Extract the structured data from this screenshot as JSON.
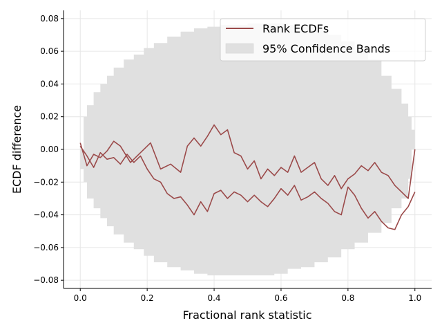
{
  "chart_data": {
    "type": "line",
    "xlabel": "Fractional rank statistic",
    "ylabel": "ECDF difference",
    "xlim": [
      -0.05,
      1.05
    ],
    "ylim": [
      -0.085,
      0.085
    ],
    "x_ticks": [
      0.0,
      0.2,
      0.4,
      0.6,
      0.8,
      1.0
    ],
    "x_tick_labels": [
      "0.0",
      "0.2",
      "0.4",
      "0.6",
      "0.8",
      "1.0"
    ],
    "y_ticks": [
      -0.08,
      -0.06,
      -0.04,
      -0.02,
      0.0,
      0.02,
      0.04,
      0.06,
      0.08
    ],
    "y_tick_labels": [
      "−0.08",
      "−0.06",
      "−0.04",
      "−0.02",
      "0.00",
      "0.02",
      "0.04",
      "0.06",
      "0.08"
    ],
    "grid": true,
    "legend_position": "top-right",
    "legend": [
      {
        "label": "Rank ECDFs",
        "kind": "line",
        "color": "#9b4a4a"
      },
      {
        "label": "95% Confidence Bands",
        "kind": "patch",
        "color": "#e0e0e0"
      }
    ],
    "confidence_band": {
      "x": [
        0.0,
        0.01,
        0.02,
        0.04,
        0.06,
        0.08,
        0.1,
        0.13,
        0.16,
        0.19,
        0.22,
        0.26,
        0.3,
        0.34,
        0.38,
        0.42,
        0.46,
        0.5,
        0.54,
        0.58,
        0.62,
        0.66,
        0.7,
        0.74,
        0.78,
        0.82,
        0.86,
        0.9,
        0.93,
        0.96,
        0.98,
        0.99,
        1.0
      ],
      "upper": [
        0.0,
        0.02,
        0.027,
        0.035,
        0.04,
        0.045,
        0.05,
        0.055,
        0.058,
        0.062,
        0.065,
        0.069,
        0.072,
        0.074,
        0.075,
        0.076,
        0.076,
        0.077,
        0.077,
        0.077,
        0.076,
        0.075,
        0.073,
        0.07,
        0.066,
        0.061,
        0.055,
        0.045,
        0.037,
        0.028,
        0.02,
        0.012,
        0.0
      ],
      "lower": [
        0.0,
        -0.012,
        -0.02,
        -0.03,
        -0.036,
        -0.042,
        -0.047,
        -0.052,
        -0.057,
        -0.061,
        -0.065,
        -0.069,
        -0.072,
        -0.074,
        -0.076,
        -0.077,
        -0.077,
        -0.077,
        -0.077,
        -0.077,
        -0.076,
        -0.073,
        -0.072,
        -0.069,
        -0.066,
        -0.061,
        -0.057,
        -0.051,
        -0.045,
        -0.036,
        -0.03,
        -0.018,
        0.0
      ]
    },
    "series": [
      {
        "color": "#9b4a4a",
        "x": [
          0.0,
          0.02,
          0.04,
          0.06,
          0.08,
          0.1,
          0.12,
          0.15,
          0.18,
          0.21,
          0.24,
          0.27,
          0.3,
          0.32,
          0.34,
          0.36,
          0.38,
          0.4,
          0.42,
          0.44,
          0.46,
          0.48,
          0.5,
          0.52,
          0.54,
          0.56,
          0.58,
          0.6,
          0.62,
          0.64,
          0.66,
          0.68,
          0.7,
          0.72,
          0.74,
          0.76,
          0.78,
          0.8,
          0.82,
          0.84,
          0.86,
          0.88,
          0.9,
          0.92,
          0.94,
          0.96,
          0.98,
          1.0
        ],
        "y": [
          0.004,
          -0.01,
          -0.003,
          -0.005,
          -0.001,
          0.005,
          0.002,
          -0.008,
          -0.002,
          0.004,
          -0.012,
          -0.009,
          -0.014,
          0.002,
          0.007,
          0.002,
          0.008,
          0.015,
          0.009,
          0.012,
          -0.002,
          -0.004,
          -0.012,
          -0.007,
          -0.018,
          -0.012,
          -0.016,
          -0.011,
          -0.014,
          -0.004,
          -0.014,
          -0.011,
          -0.008,
          -0.018,
          -0.022,
          -0.016,
          -0.024,
          -0.018,
          -0.015,
          -0.01,
          -0.013,
          -0.008,
          -0.014,
          -0.016,
          -0.022,
          -0.026,
          -0.03,
          0.0
        ]
      },
      {
        "color": "#9b4a4a",
        "x": [
          0.0,
          0.02,
          0.04,
          0.06,
          0.08,
          0.1,
          0.12,
          0.14,
          0.16,
          0.18,
          0.2,
          0.22,
          0.24,
          0.26,
          0.28,
          0.3,
          0.32,
          0.34,
          0.36,
          0.38,
          0.4,
          0.42,
          0.44,
          0.46,
          0.48,
          0.5,
          0.52,
          0.54,
          0.56,
          0.58,
          0.6,
          0.62,
          0.64,
          0.66,
          0.68,
          0.7,
          0.72,
          0.74,
          0.76,
          0.78,
          0.8,
          0.82,
          0.84,
          0.86,
          0.88,
          0.9,
          0.92,
          0.94,
          0.96,
          0.98,
          1.0
        ],
        "y": [
          0.002,
          -0.004,
          -0.011,
          -0.002,
          -0.006,
          -0.005,
          -0.009,
          -0.003,
          -0.008,
          -0.004,
          -0.012,
          -0.018,
          -0.02,
          -0.027,
          -0.03,
          -0.029,
          -0.034,
          -0.04,
          -0.032,
          -0.038,
          -0.027,
          -0.025,
          -0.03,
          -0.026,
          -0.028,
          -0.032,
          -0.028,
          -0.032,
          -0.035,
          -0.03,
          -0.024,
          -0.028,
          -0.022,
          -0.031,
          -0.029,
          -0.026,
          -0.03,
          -0.033,
          -0.038,
          -0.04,
          -0.023,
          -0.028,
          -0.036,
          -0.042,
          -0.038,
          -0.044,
          -0.048,
          -0.049,
          -0.04,
          -0.035,
          -0.026
        ]
      }
    ]
  }
}
